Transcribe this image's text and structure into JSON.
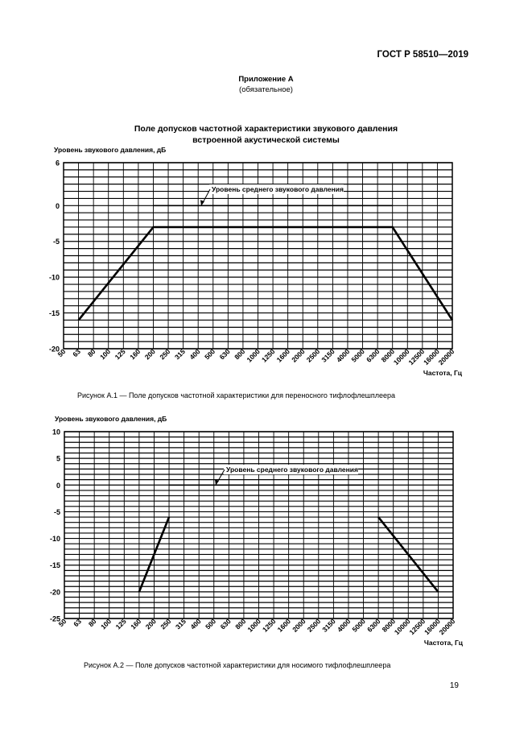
{
  "header": {
    "doc_number": "ГОСТ Р 58510—2019",
    "appendix_title": "Приложение А",
    "appendix_status": "(обязательное)",
    "section_title_line1": "Поле допусков частотной характеристики звукового давления",
    "section_title_line2": "встроенной акустической системы"
  },
  "chart_data": [
    {
      "type": "line",
      "ylabel": "Уровень звукового давления, дБ",
      "xlabel": "Частота, Гц",
      "categories": [
        "50",
        "63",
        "80",
        "100",
        "125",
        "160",
        "200",
        "250",
        "315",
        "400",
        "500",
        "630",
        "800",
        "1000",
        "1250",
        "1600",
        "2000",
        "2500",
        "3150",
        "4000",
        "5000",
        "6300",
        "8000",
        "10000",
        "12500",
        "16000",
        "20000"
      ],
      "ylim": [
        -20,
        6
      ],
      "yticks": [
        6,
        0,
        -5,
        -10,
        -15,
        -20
      ],
      "annotation": "Уровень среднего звукового давления",
      "series": [
        {
          "style": "tolerance",
          "points": [
            [
              "63",
              -16
            ],
            [
              "200",
              -3
            ],
            [
              "8000",
              -3
            ],
            [
              "20000",
              -16
            ]
          ]
        },
        {
          "style": "mean",
          "points": [
            [
              "200",
              0
            ],
            [
              "8000",
              0
            ]
          ]
        }
      ],
      "caption": "Рисунок А.1 — Поле допусков частотной характеристики для переносного тифлофлешплеера"
    },
    {
      "type": "line",
      "ylabel": "Уровень звукового давления, дБ",
      "xlabel": "Частота, Гц",
      "categories": [
        "50",
        "63",
        "80",
        "100",
        "125",
        "160",
        "200",
        "250",
        "315",
        "400",
        "500",
        "630",
        "800",
        "1000",
        "1250",
        "1600",
        "2000",
        "2500",
        "3150",
        "4000",
        "5000",
        "6300",
        "8000",
        "10000",
        "12500",
        "16000",
        "20000"
      ],
      "ylim": [
        -25,
        10
      ],
      "yticks": [
        10,
        5,
        0,
        -5,
        -10,
        -15,
        -20,
        -25
      ],
      "annotation": "Уровень среднего звукового давления",
      "series": [
        {
          "style": "tolerance",
          "points": [
            [
              "160",
              -20
            ],
            [
              "250",
              -6
            ]
          ]
        },
        {
          "style": "tolerance",
          "points": [
            [
              "6300",
              -6
            ],
            [
              "16000",
              -20
            ]
          ]
        },
        {
          "style": "mean",
          "points": [
            [
              "250",
              0
            ],
            [
              "5000",
              0
            ]
          ]
        }
      ],
      "caption": "Рисунок А.2 — Поле допусков частотной характеристики для носимого тифлофлешплеера"
    }
  ],
  "page_number": "19"
}
